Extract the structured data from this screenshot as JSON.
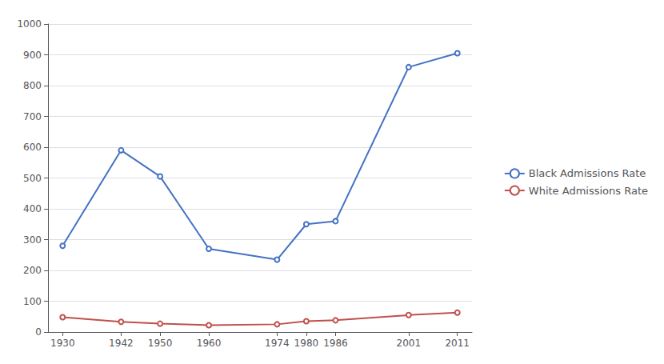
{
  "chart_data": {
    "type": "line",
    "x": [
      1930,
      1942,
      1950,
      1960,
      1974,
      1980,
      1986,
      2001,
      2011
    ],
    "series": [
      {
        "name": "Black Admissions Rate",
        "color": "#4472C4",
        "values": [
          280,
          590,
          505,
          270,
          235,
          350,
          360,
          860,
          905
        ]
      },
      {
        "name": "White Admissions Rate",
        "color": "#C0504D",
        "values": [
          48,
          33,
          27,
          22,
          25,
          35,
          38,
          55,
          63
        ]
      }
    ],
    "xlim": [
      1927,
      2014
    ],
    "xticks": [
      1930,
      1942,
      1950,
      1960,
      1974,
      1980,
      1986,
      2001,
      2011
    ],
    "ylim": [
      0,
      1000
    ],
    "yticks": [
      0,
      100,
      200,
      300,
      400,
      500,
      600,
      700,
      800,
      900,
      1000
    ],
    "grid": true,
    "legend": "right"
  }
}
